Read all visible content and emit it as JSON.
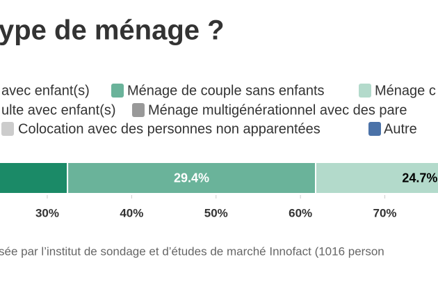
{
  "chart_data": {
    "type": "stacked-bar-horizontal",
    "title": "ype de ménage ?",
    "series": [
      {
        "name": "avec enfant(s)",
        "color": "#1b8a67",
        "values": [
          32.4
        ]
      },
      {
        "name": "Ménage de couple sans enfants",
        "color": "#6ab39a",
        "values": [
          29.4
        ],
        "value_labels": [
          "29.4%"
        ]
      },
      {
        "name": "Ménage c",
        "color": "#b3dacb",
        "values": [
          24.7
        ],
        "value_labels": [
          "24.7%"
        ]
      },
      {
        "name": "ulte avec enfant(s)",
        "values": [
          null
        ]
      },
      {
        "name": "Ménage multigénérationnel avec des pare",
        "color": "#999999",
        "values": [
          null
        ]
      },
      {
        "name": "Colocation avec des personnes non apparentées",
        "color": "#cccccc",
        "values": [
          null
        ]
      },
      {
        "name": "Autre",
        "color": "#4b72a8",
        "values": [
          null
        ]
      }
    ],
    "xlim": [
      24.4,
      76.3
    ],
    "xticks": [
      {
        "value": 30,
        "label": "30%"
      },
      {
        "value": 40,
        "label": "40%"
      },
      {
        "value": 50,
        "label": "50%"
      },
      {
        "value": 60,
        "label": "60%"
      },
      {
        "value": 70,
        "label": "70%"
      }
    ],
    "source": "sée par l’institut de sondage et d’études de marché Innofact (1016 person"
  }
}
